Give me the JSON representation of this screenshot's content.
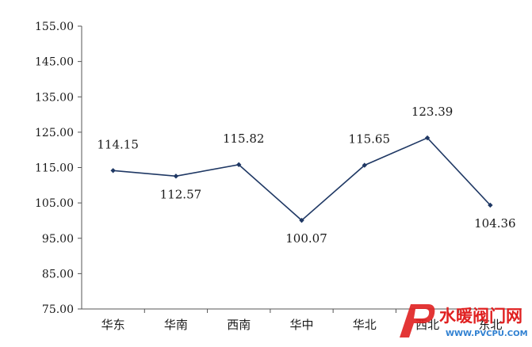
{
  "chart_data": {
    "type": "line",
    "title": "",
    "xlabel": "",
    "ylabel": "",
    "categories": [
      "华东",
      "华南",
      "西南",
      "华中",
      "华北",
      "西北",
      "东北"
    ],
    "series": [
      {
        "values": [
          114.15,
          112.57,
          115.82,
          100.07,
          115.65,
          123.39,
          104.36
        ],
        "color": "#1f3864"
      }
    ],
    "data_labels": [
      "114.15",
      "112.57",
      "115.82",
      "100.07",
      "115.65",
      "123.39",
      "104.36"
    ],
    "ylim": [
      75,
      155
    ],
    "yticks": [
      "155.00",
      "145.00",
      "135.00",
      "125.00",
      "115.00",
      "105.00",
      "95.00",
      "85.00",
      "75.00"
    ],
    "grid": false,
    "legend": "none"
  },
  "watermark": {
    "brand_text": "水暖阀门网",
    "url_text": "WWW.PVCPU.COM",
    "logo_letter": "P",
    "brand_color": "#e02020",
    "url_color": "#2d7fd1"
  }
}
